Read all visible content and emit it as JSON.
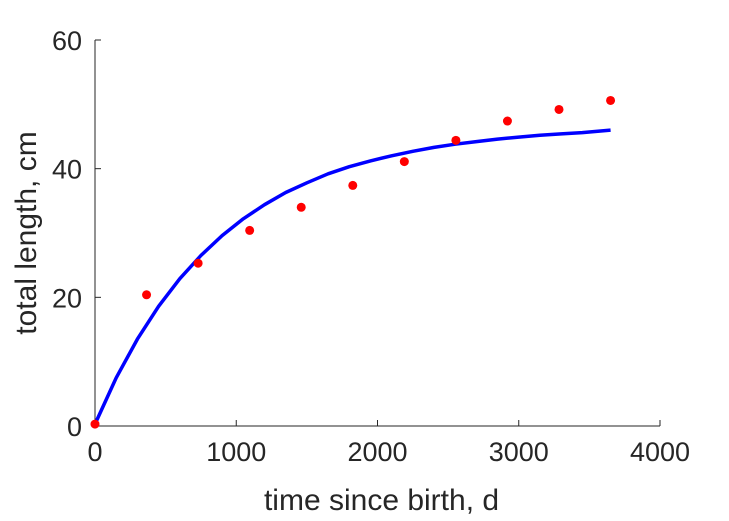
{
  "chart_data": {
    "type": "scatter",
    "xlabel": "time since birth, d",
    "ylabel": "total length, cm",
    "xlim": [
      0,
      4000
    ],
    "ylim": [
      0,
      60
    ],
    "xticks": [
      0,
      1000,
      2000,
      3000,
      4000
    ],
    "yticks": [
      0,
      20,
      40,
      60
    ],
    "xtick_labels": [
      "0",
      "1000",
      "2000",
      "3000",
      "4000"
    ],
    "ytick_labels": [
      "0",
      "20",
      "40",
      "60"
    ],
    "grid": false,
    "series": [
      {
        "kind": "scatter",
        "color": "#ff0000",
        "x": [
          0,
          365,
          730,
          1095,
          1460,
          1825,
          2190,
          2555,
          2920,
          3285,
          3650
        ],
        "y": [
          0.3,
          20.4,
          25.3,
          30.4,
          34.0,
          37.4,
          41.1,
          44.4,
          47.4,
          49.2,
          50.6
        ]
      },
      {
        "kind": "line",
        "color": "#0000ff",
        "x": [
          0,
          150,
          300,
          450,
          600,
          750,
          900,
          1050,
          1200,
          1350,
          1500,
          1650,
          1800,
          1950,
          2100,
          2250,
          2400,
          2550,
          2700,
          2850,
          3000,
          3150,
          3300,
          3450,
          3650
        ],
        "y": [
          0.3,
          7.5,
          13.5,
          18.6,
          22.9,
          26.5,
          29.6,
          32.2,
          34.4,
          36.3,
          37.8,
          39.2,
          40.3,
          41.2,
          42.0,
          42.7,
          43.3,
          43.8,
          44.2,
          44.6,
          44.9,
          45.2,
          45.4,
          45.6,
          46.0
        ]
      }
    ]
  }
}
